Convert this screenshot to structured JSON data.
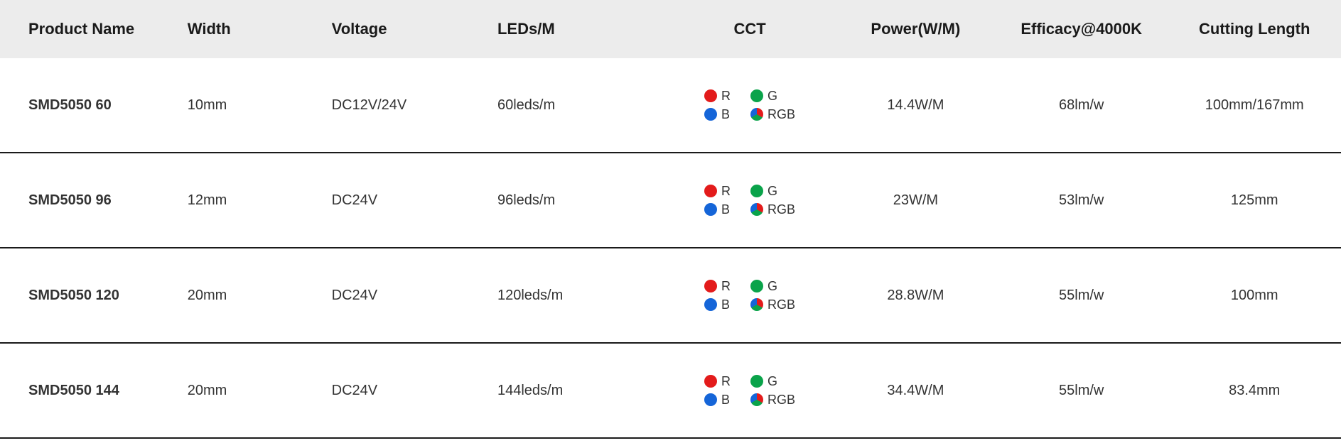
{
  "table": {
    "header_bg": "#ececec",
    "row_border_color": "#1a1a1a",
    "columns": [
      {
        "key": "name",
        "label": "Product Name",
        "class": "col-name"
      },
      {
        "key": "width",
        "label": "Width",
        "class": "col-width"
      },
      {
        "key": "volt",
        "label": "Voltage",
        "class": "col-volt"
      },
      {
        "key": "leds",
        "label": "LEDs/M",
        "class": "col-leds"
      },
      {
        "key": "cct",
        "label": "CCT",
        "class": "col-cct"
      },
      {
        "key": "power",
        "label": "Power(W/M)",
        "class": "col-power"
      },
      {
        "key": "eff",
        "label": "Efficacy@4000K",
        "class": "col-eff"
      },
      {
        "key": "cut",
        "label": "Cutting Length",
        "class": "col-cut"
      }
    ],
    "cct_options": [
      {
        "label": "R",
        "dot": "dot-r"
      },
      {
        "label": "G",
        "dot": "dot-g"
      },
      {
        "label": "B",
        "dot": "dot-b"
      },
      {
        "label": "RGB",
        "dot": "dot-rgb"
      }
    ],
    "cct_colors": {
      "R": "#e31b1b",
      "G": "#0aa34a",
      "B": "#1565d8"
    },
    "rows": [
      {
        "name": "SMD5050 60",
        "width": "10mm",
        "volt": "DC12V/24V",
        "leds": "60leds/m",
        "power": "14.4W/M",
        "eff": "68lm/w",
        "cut": "100mm/167mm"
      },
      {
        "name": "SMD5050 96",
        "width": "12mm",
        "volt": "DC24V",
        "leds": "96leds/m",
        "power": "23W/M",
        "eff": "53lm/w",
        "cut": "125mm"
      },
      {
        "name": "SMD5050 120",
        "width": "20mm",
        "volt": "DC24V",
        "leds": "120leds/m",
        "power": "28.8W/M",
        "eff": "55lm/w",
        "cut": "100mm"
      },
      {
        "name": "SMD5050 144",
        "width": "20mm",
        "volt": "DC24V",
        "leds": "144leds/m",
        "power": "34.4W/M",
        "eff": "55lm/w",
        "cut": "83.4mm"
      }
    ]
  }
}
